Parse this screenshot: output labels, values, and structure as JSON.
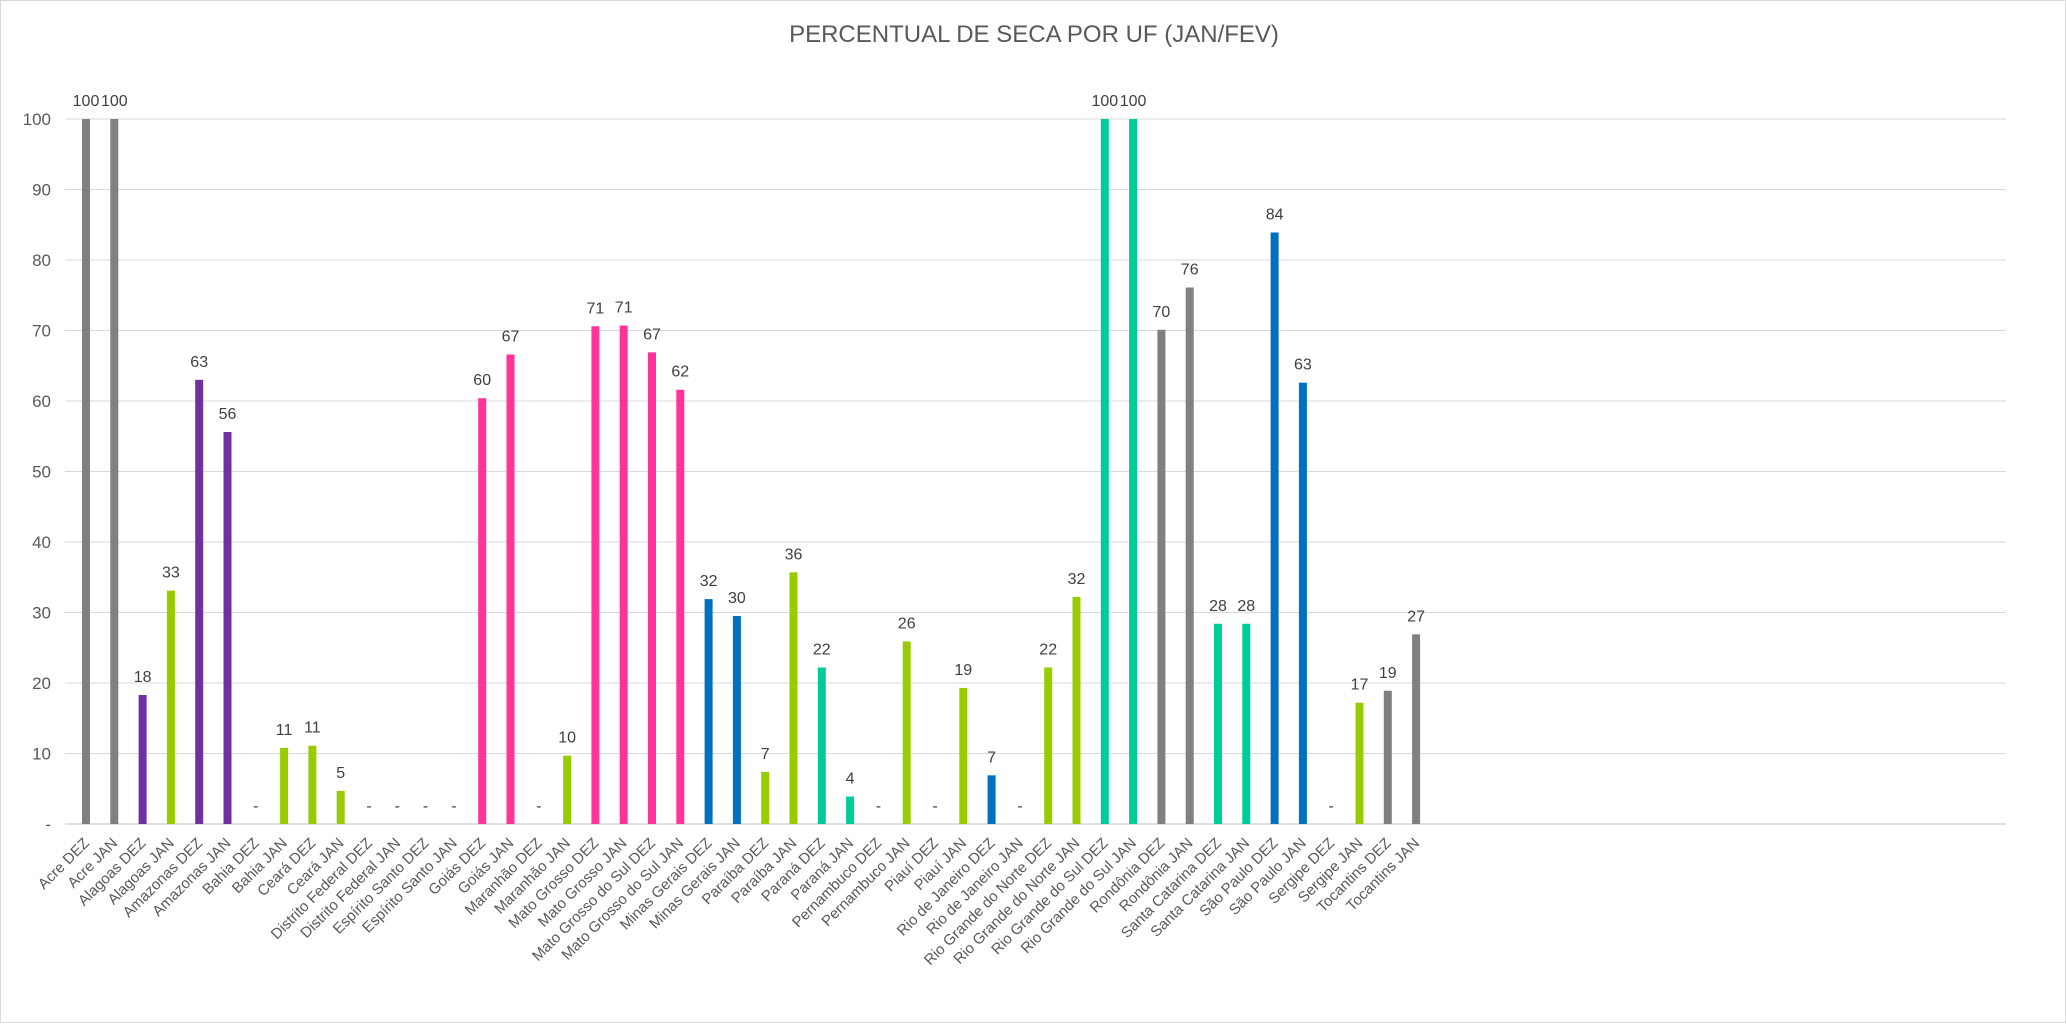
{
  "chart_data": {
    "type": "bar",
    "title": "PERCENTUAL DE SECA POR UF (JAN/FEV)",
    "xlabel": "",
    "ylabel": "",
    "ylim": [
      0,
      100
    ],
    "y_ticks": [
      "-",
      "10",
      "20",
      "30",
      "40",
      "50",
      "60",
      "70",
      "80",
      "90",
      "100"
    ],
    "grid": true,
    "legend": "none",
    "categories": [
      "Acre DEZ",
      "Acre JAN",
      "Alagoas DEZ",
      "Alagoas JAN",
      "Amazonas DEZ",
      "Amazonas JAN",
      "Bahia DEZ",
      "Bahia JAN",
      "Ceará DEZ",
      "Ceará JAN",
      "Distrito Federal DEZ",
      "Distrito Federal JAN",
      "Espírito Santo DEZ",
      "Espírito Santo JAN",
      "Goiás DEZ",
      "Goiás JAN",
      "Maranhão DEZ",
      "Maranhão JAN",
      "Mato Grosso DEZ",
      "Mato Grosso JAN",
      "Mato Grosso do Sul DEZ",
      "Mato Grosso do Sul JAN",
      "Minas Gerais DEZ",
      "Minas Gerais JAN",
      "Paraíba DEZ",
      "Paraíba JAN",
      "Paraná DEZ",
      "Paraná JAN",
      "Pernambuco DEZ",
      "Pernambuco JAN",
      "Piauí DEZ",
      "Piauí JAN",
      "Rio de Janeiro DEZ",
      "Rio de Janeiro JAN",
      "Rio Grande do Norte DEZ",
      "Rio Grande do Norte JAN",
      "Rio Grande do Sul DEZ",
      "Rio Grande do Sul JAN",
      "Rondônia DEZ",
      "Rondônia JAN",
      "Santa Catarina DEZ",
      "Santa Catarina JAN",
      "São Paulo DEZ",
      "São Paulo JAN",
      "Sergipe DEZ",
      "Sergipe JAN",
      "Tocantins DEZ",
      "Tocantins JAN"
    ],
    "values": [
      100,
      100,
      18.3,
      33.1,
      63,
      55.6,
      0,
      10.8,
      11.1,
      4.7,
      0,
      0,
      0,
      0,
      60.4,
      66.6,
      0,
      9.7,
      70.6,
      70.7,
      66.9,
      61.6,
      31.9,
      29.5,
      7.4,
      35.7,
      22.2,
      3.9,
      0,
      25.9,
      0,
      19.3,
      6.9,
      0,
      22.2,
      32.2,
      100,
      100,
      70.1,
      76.1,
      28.4,
      28.4,
      83.9,
      62.6,
      0,
      17.2,
      18.9,
      26.9
    ],
    "data_labels": [
      "100",
      "100",
      "18",
      "33",
      "63",
      "56",
      "-",
      "11",
      "11",
      "5",
      "-",
      "-",
      "-",
      "-",
      "60",
      "67",
      "-",
      "10",
      "71",
      "71",
      "67",
      "62",
      "32",
      "30",
      "7",
      "36",
      "22",
      "4",
      "-",
      "26",
      "-",
      "19",
      "7",
      "-",
      "22",
      "32",
      "100",
      "100",
      "70",
      "76",
      "28",
      "28",
      "84",
      "63",
      "-",
      "17",
      "19",
      "27"
    ],
    "bar_colors": [
      "#808080",
      "#808080",
      "#7030a0",
      "#99cc00",
      "#7030a0",
      "#7030a0",
      "#99cc00",
      "#99cc00",
      "#99cc00",
      "#99cc00",
      "#99cc00",
      "#99cc00",
      "#0070c0",
      "#0070c0",
      "#ff3399",
      "#ff3399",
      "#99cc00",
      "#99cc00",
      "#ff3399",
      "#ff3399",
      "#ff3399",
      "#ff3399",
      "#0070c0",
      "#0070c0",
      "#99cc00",
      "#99cc00",
      "#00cc99",
      "#00cc99",
      "#99cc00",
      "#99cc00",
      "#99cc00",
      "#99cc00",
      "#0070c0",
      "#0070c0",
      "#99cc00",
      "#99cc00",
      "#00cc99",
      "#00cc99",
      "#808080",
      "#808080",
      "#00cc99",
      "#00cc99",
      "#0070c0",
      "#0070c0",
      "#99cc00",
      "#99cc00",
      "#808080",
      "#808080"
    ],
    "colors": {
      "grid": "#d9d9d9",
      "axis": "#bfbfbf",
      "tick_text": "#595959",
      "label_text": "#404040",
      "background": "#ffffff"
    }
  }
}
